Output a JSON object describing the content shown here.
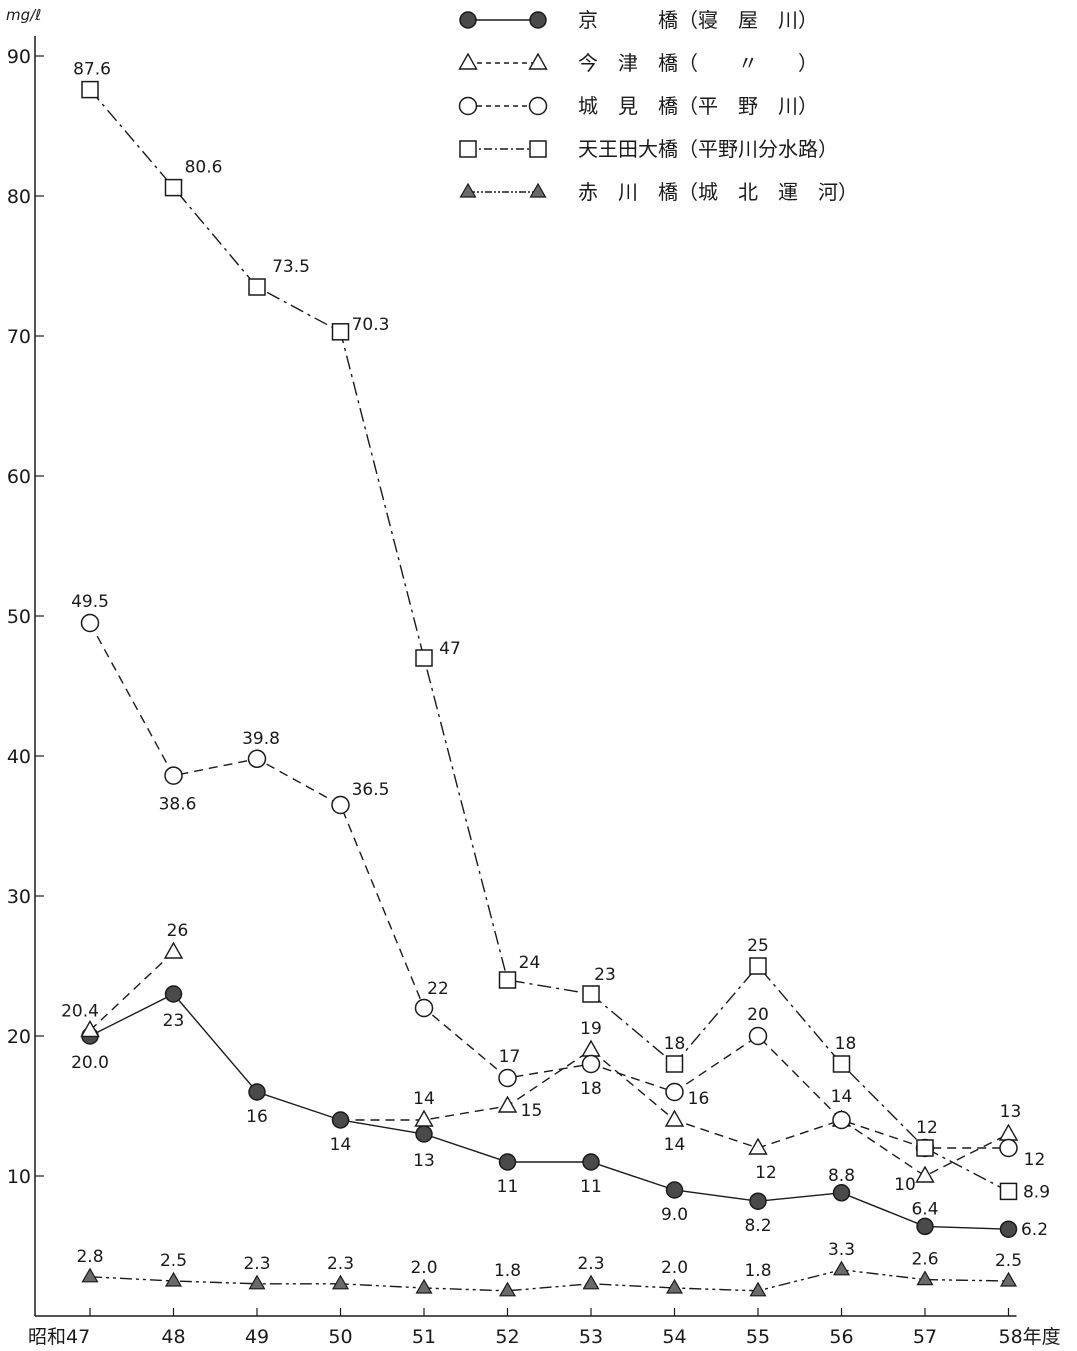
{
  "chart_data": {
    "type": "line",
    "unit_label": "mg/ℓ",
    "categories": [
      "昭和47",
      "48",
      "49",
      "50",
      "51",
      "52",
      "53",
      "54",
      "55",
      "56",
      "57",
      "58年度"
    ],
    "ylim": [
      0,
      90
    ],
    "yticks": [
      10,
      20,
      30,
      40,
      50,
      60,
      70,
      80,
      90
    ],
    "grid": false,
    "legend_position": "top-right",
    "series": [
      {
        "name": "京　　　橋（寝　屋　川）",
        "marker": "filled-circle",
        "line": "solid",
        "color": "#1a1a1a",
        "values": [
          20.0,
          23,
          16,
          14,
          13,
          11,
          11,
          9.0,
          8.2,
          8.8,
          6.4,
          6.2
        ],
        "labels": [
          "20.0",
          "23",
          "16",
          "14",
          "13",
          "11",
          "11",
          "9.0",
          "8.2",
          "8.8",
          "6.4",
          "6.2"
        ]
      },
      {
        "name": "今　津　橋（　　〃　　）",
        "marker": "open-triangle",
        "line": "dashed",
        "color": "#1a1a1a",
        "values": [
          20.4,
          26,
          null,
          null,
          14,
          15,
          19,
          14,
          12,
          14,
          10,
          13
        ],
        "labels": [
          "20.4",
          "26",
          "",
          "",
          "14",
          "15",
          "19",
          "14",
          "12",
          "14",
          "10",
          "13"
        ]
      },
      {
        "name": "城　見　橋（平　野　川）",
        "marker": "open-circle",
        "line": "dashed",
        "color": "#1a1a1a",
        "values": [
          49.5,
          38.6,
          39.8,
          36.5,
          22,
          17,
          18,
          16,
          20,
          14,
          12,
          12
        ],
        "labels": [
          "49.5",
          "38.6",
          "39.8",
          "36.5",
          "22",
          "17",
          "18",
          "16",
          "20",
          "",
          "",
          "12"
        ]
      },
      {
        "name": "天王田大橋（平野川分水路）",
        "marker": "open-square",
        "line": "dashdot",
        "color": "#1a1a1a",
        "values": [
          87.6,
          80.6,
          73.5,
          70.3,
          47,
          24,
          23,
          18,
          25,
          18,
          12,
          8.9
        ],
        "labels": [
          "87.6",
          "80.6",
          "73.5",
          "70.3",
          "47",
          "24",
          "23",
          "18",
          "25",
          "18",
          "12",
          "8.9"
        ]
      },
      {
        "name": "赤　川　橋（城　北　運　河）",
        "marker": "shaded-triangle",
        "line": "dashdotdot",
        "color": "#1a1a1a",
        "values": [
          2.8,
          2.5,
          2.3,
          2.3,
          2.0,
          1.8,
          2.3,
          2.0,
          1.8,
          3.3,
          2.6,
          2.5
        ],
        "labels": [
          "2.8",
          "2.5",
          "2.3",
          "2.3",
          "2.0",
          "1.8",
          "2.3",
          "2.0",
          "1.8",
          "3.3",
          "2.6",
          "2.5"
        ]
      }
    ]
  }
}
